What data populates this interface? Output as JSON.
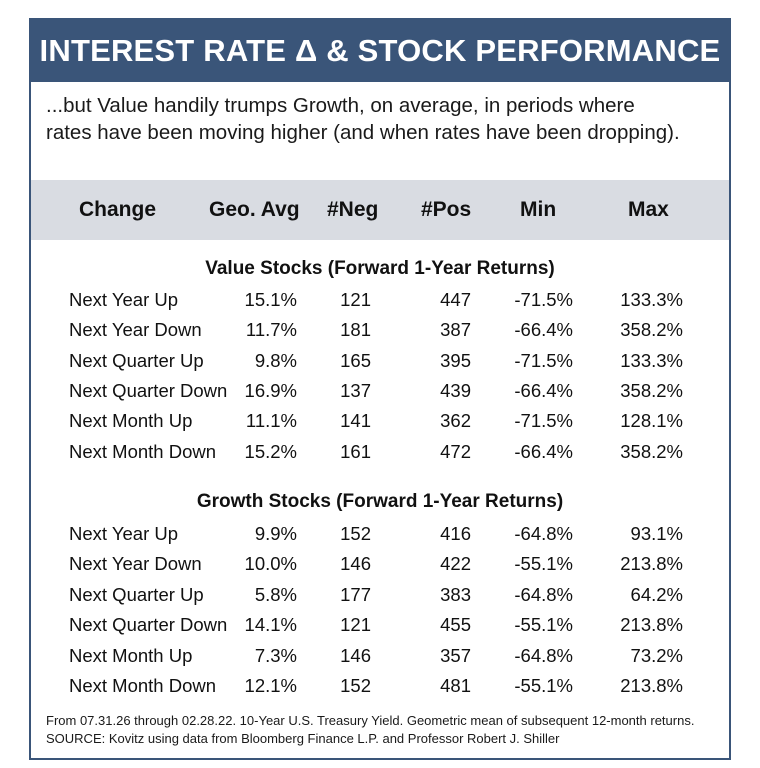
{
  "title": "INTEREST RATE Δ & STOCK PERFORMANCE",
  "subtitle_line1": "...but Value handily trumps Growth, on average, in periods where",
  "subtitle_line2": "rates have been moving higher (and when rates have been dropping).",
  "columns": [
    "Change",
    "Geo. Avg",
    "#Neg",
    "#Pos",
    "Min",
    "Max"
  ],
  "sections": [
    {
      "title": "Value Stocks (Forward 1-Year Returns)",
      "rows": [
        {
          "label": "Next Year Up",
          "geo": "15.1%",
          "neg": "121",
          "pos": "447",
          "min": "-71.5%",
          "max": "133.3%"
        },
        {
          "label": "Next Year Down",
          "geo": "11.7%",
          "neg": "181",
          "pos": "387",
          "min": "-66.4%",
          "max": "358.2%"
        },
        {
          "label": "Next Quarter Up",
          "geo": "9.8%",
          "neg": "165",
          "pos": "395",
          "min": "-71.5%",
          "max": "133.3%"
        },
        {
          "label": "Next Quarter Down",
          "geo": "16.9%",
          "neg": "137",
          "pos": "439",
          "min": "-66.4%",
          "max": "358.2%"
        },
        {
          "label": "Next Month Up",
          "geo": "11.1%",
          "neg": "141",
          "pos": "362",
          "min": "-71.5%",
          "max": "128.1%"
        },
        {
          "label": "Next Month Down",
          "geo": "15.2%",
          "neg": "161",
          "pos": "472",
          "min": "-66.4%",
          "max": "358.2%"
        }
      ]
    },
    {
      "title": "Growth Stocks (Forward 1-Year Returns)",
      "rows": [
        {
          "label": "Next Year Up",
          "geo": "9.9%",
          "neg": "152",
          "pos": "416",
          "min": "-64.8%",
          "max": "93.1%"
        },
        {
          "label": "Next Year Down",
          "geo": "10.0%",
          "neg": "146",
          "pos": "422",
          "min": "-55.1%",
          "max": "213.8%"
        },
        {
          "label": "Next Quarter Up",
          "geo": "5.8%",
          "neg": "177",
          "pos": "383",
          "min": "-64.8%",
          "max": "64.2%"
        },
        {
          "label": "Next Quarter Down",
          "geo": "14.1%",
          "neg": "121",
          "pos": "455",
          "min": "-55.1%",
          "max": "213.8%"
        },
        {
          "label": "Next Month Up",
          "geo": "7.3%",
          "neg": "146",
          "pos": "357",
          "min": "-64.8%",
          "max": "73.2%"
        },
        {
          "label": "Next Month Down",
          "geo": "12.1%",
          "neg": "152",
          "pos": "481",
          "min": "-55.1%",
          "max": "213.8%"
        }
      ]
    }
  ],
  "footnote_line1": "From 07.31.26 through 02.28.22. 10-Year U.S. Treasury Yield. Geometric mean of subsequent 12-month returns.",
  "footnote_line2": "SOURCE: Kovitz using data from Bloomberg Finance L.P. and Professor Robert J. Shiller",
  "colors": {
    "banner": "#3a5579",
    "header_band": "#d9dce2",
    "text": "#111111"
  }
}
